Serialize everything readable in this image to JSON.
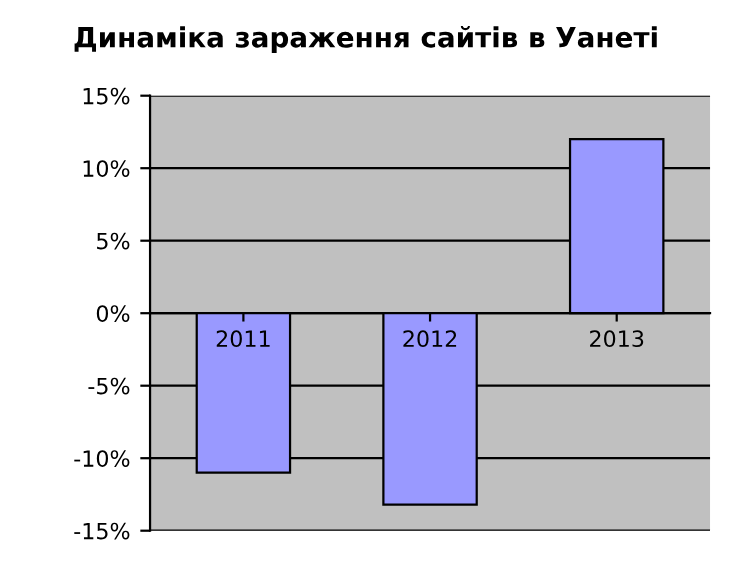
{
  "chart_data": {
    "type": "bar",
    "title": "Динаміка зараження сайтів в Уанеті",
    "categories": [
      "2011",
      "2012",
      "2013"
    ],
    "values": [
      -11,
      -13.2,
      12
    ],
    "color": "#9999ff",
    "ylim": [
      -15,
      15
    ],
    "yticks": [
      {
        "value": -15,
        "label": "-15%"
      },
      {
        "value": -10,
        "label": "-10%"
      },
      {
        "value": -5,
        "label": "-5%"
      },
      {
        "value": 0,
        "label": "0%"
      },
      {
        "value": 5,
        "label": "5%"
      },
      {
        "value": 10,
        "label": "10%"
      },
      {
        "value": 15,
        "label": "15%"
      }
    ],
    "grid": "y",
    "legend": false
  }
}
